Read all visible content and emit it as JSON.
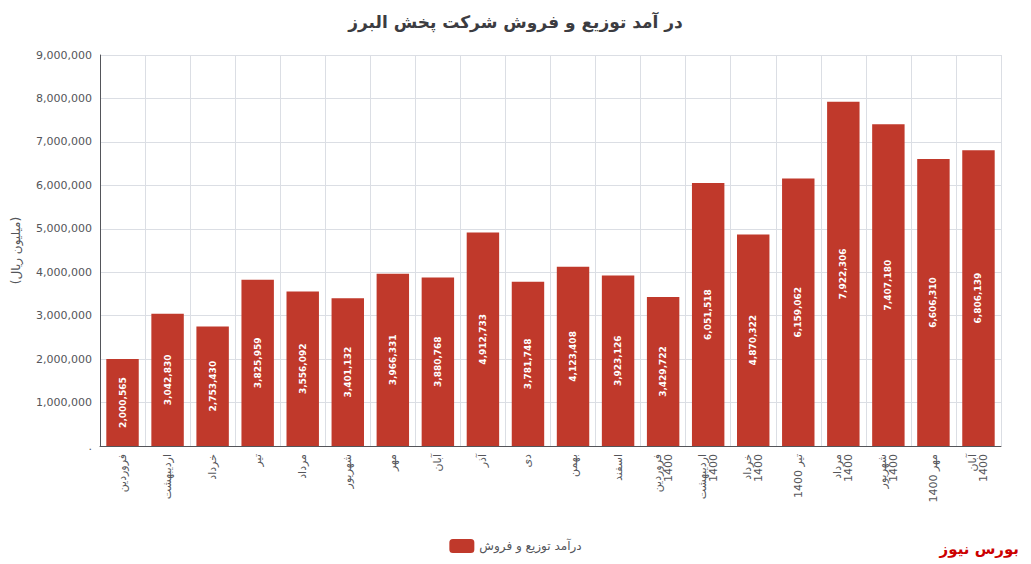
{
  "chart_data": {
    "type": "bar",
    "title": "در آمد توزیع و فروش شرکت پخش البرز",
    "ylabel": "(میلیون ریال)",
    "categories": [
      "فروردین",
      "اردیبهشت",
      "خرداد",
      "تیر",
      "مرداد",
      "شهریور",
      "مهر",
      "آبان",
      "آذر",
      "دی",
      "بهمن",
      "اسفند",
      "فروردین\n1400",
      "اردیبهشت\n1400",
      "خرداد\n1400",
      "تیر 1400",
      "مرداد\n1400",
      "شهریور\n1400",
      "مهر 1400",
      "آبان\n1400"
    ],
    "series": [
      {
        "name": "درآمد توزیع و فروش",
        "color": "#c0392b",
        "values": [
          2000565,
          3042830,
          2753430,
          3825959,
          3556092,
          3401132,
          3966331,
          3880768,
          4912733,
          3781748,
          4123408,
          3923126,
          3429722,
          6051518,
          4870322,
          6159062,
          7922306,
          7407180,
          6606310,
          6806139
        ],
        "value_labels": [
          "2,000,565",
          "3,042,830",
          "2,753,430",
          "3,825,959",
          "3,556,092",
          "3,401,132",
          "3,966,331",
          "3,880,768",
          "4,912,733",
          "3,781,748",
          "4,123,408",
          "3,923,126",
          "3,429,722",
          "6,051,518",
          "4,870,322",
          "6,159,062",
          "7,922,306",
          "7,407,180",
          "6,606,310",
          "6,806,139"
        ]
      }
    ],
    "ylim": [
      0,
      9000000
    ],
    "yticks": [
      {
        "value": 0,
        "label": "."
      },
      {
        "value": 1000000,
        "label": "1,000,000"
      },
      {
        "value": 2000000,
        "label": "2,000,000"
      },
      {
        "value": 3000000,
        "label": "3,000,000"
      },
      {
        "value": 4000000,
        "label": "4,000,000"
      },
      {
        "value": 5000000,
        "label": "5,000,000"
      },
      {
        "value": 6000000,
        "label": "6,000,000"
      },
      {
        "value": 7000000,
        "label": "7,000,000"
      },
      {
        "value": 8000000,
        "label": "8,000,000"
      },
      {
        "value": 9000000,
        "label": "9,000,000"
      }
    ],
    "grid": true,
    "legend": "bottom",
    "data_labels": true,
    "annotations": [
      {
        "text": "بورس نیوز",
        "color": "#cc0000"
      }
    ]
  }
}
